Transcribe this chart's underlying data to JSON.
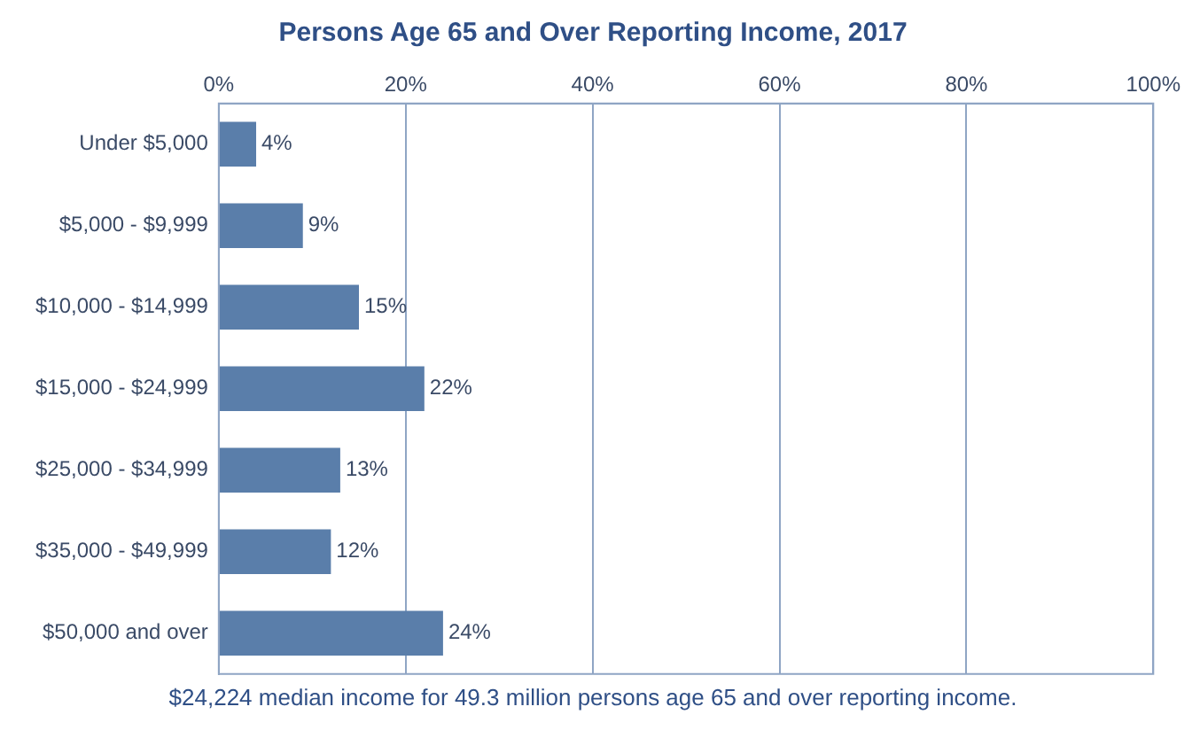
{
  "chart_data": {
    "type": "bar",
    "orientation": "horizontal",
    "title": "Persons Age 65 and Over Reporting Income, 2017",
    "categories": [
      "Under $5,000",
      "$5,000 - $9,999",
      "$10,000 - $14,999",
      "$15,000 - $24,999",
      "$25,000 - $34,999",
      "$35,000 - $49,999",
      "$50,000 and over"
    ],
    "values": [
      4,
      9,
      15,
      22,
      13,
      12,
      24
    ],
    "value_labels": [
      "4%",
      "9%",
      "15%",
      "22%",
      "13%",
      "12%",
      "24%"
    ],
    "color": "#5a7eaa",
    "xlim": [
      0,
      100
    ],
    "xticks": [
      {
        "value": 0,
        "label": "0%"
      },
      {
        "value": 20,
        "label": "20%"
      },
      {
        "value": 40,
        "label": "40%"
      },
      {
        "value": 60,
        "label": "60%"
      },
      {
        "value": 80,
        "label": "80%"
      },
      {
        "value": 100,
        "label": "100%"
      }
    ],
    "grid": "x",
    "legend": false,
    "annotations": [
      "$24,224 median income for 49.3 million persons age 65 and over reporting income."
    ]
  }
}
